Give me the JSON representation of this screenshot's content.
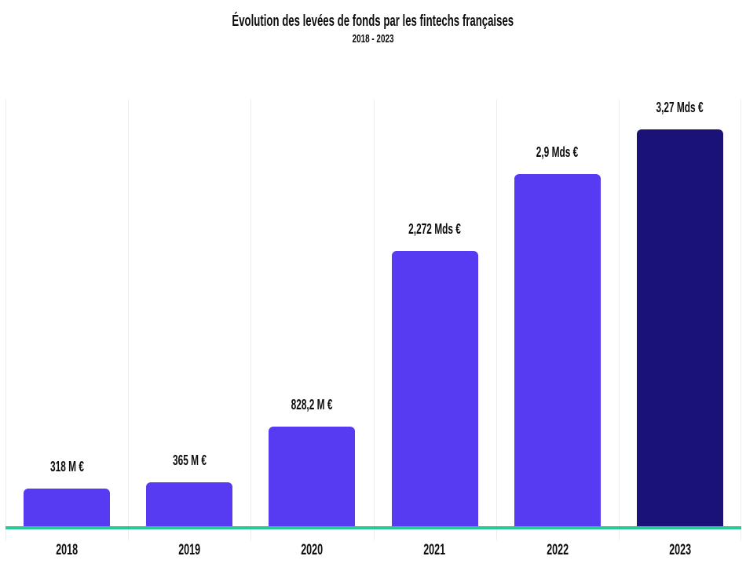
{
  "chart_data": {
    "type": "bar",
    "title": "Évolution des levées de fonds par les fintechs françaises",
    "subtitle": "2018 - 2023",
    "categories": [
      "2018",
      "2019",
      "2020",
      "2021",
      "2022",
      "2023"
    ],
    "values": [
      318,
      365,
      828.2,
      2272,
      2900,
      3270
    ],
    "value_labels": [
      "318 M €",
      "365 M €",
      "828,2 M €",
      "2,272 Mds €",
      "2,9 Mds €",
      "3,27 Mds €"
    ],
    "unit": "M€",
    "ylim": [
      0,
      3530
    ],
    "xlabel": "",
    "ylabel": "",
    "grid": "vertical-only",
    "legend": "none",
    "bar_colors": [
      "#573BF2",
      "#573BF2",
      "#573BF2",
      "#573BF2",
      "#573BF2",
      "#1B1278"
    ],
    "gridline_color": "#ededed",
    "baseline_color": "#25CB92",
    "text_color": "#0d0d0d",
    "background_color": "#ffffff"
  }
}
